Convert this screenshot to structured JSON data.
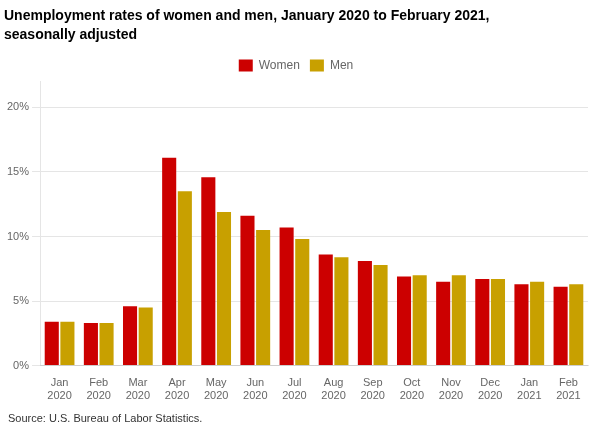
{
  "chart_data": {
    "type": "bar",
    "title": "Unemployment rates of women and men, January 2020 to February 2021,",
    "subtitle": "seasonally adjusted",
    "source": "Source: U.S. Bureau of Labor Statistics.",
    "categories": [
      "Jan 2020",
      "Feb 2020",
      "Mar 2020",
      "Apr 2020",
      "May 2020",
      "Jun 2020",
      "Jul 2020",
      "Aug 2020",
      "Sep 2020",
      "Oct 2020",
      "Nov 2020",
      "Dec 2020",
      "Jan 2021",
      "Feb 2021"
    ],
    "series": [
      {
        "name": "Women",
        "color": "#CC0000",
        "values": [
          3.4,
          3.3,
          4.6,
          16.1,
          14.6,
          11.6,
          10.7,
          8.6,
          8.1,
          6.9,
          6.5,
          6.7,
          6.3,
          6.1
        ]
      },
      {
        "name": "Men",
        "color": "#C8A000",
        "values": [
          3.4,
          3.3,
          4.5,
          13.5,
          11.9,
          10.5,
          9.8,
          8.4,
          7.8,
          7.0,
          7.0,
          6.7,
          6.5,
          6.3
        ]
      }
    ],
    "ylim": [
      0,
      22
    ],
    "yticks": [
      {
        "value": 0,
        "label": "0%"
      },
      {
        "value": 5,
        "label": "5%"
      },
      {
        "value": 10,
        "label": "10%"
      },
      {
        "value": 15,
        "label": "15%"
      },
      {
        "value": 20,
        "label": "20%"
      }
    ],
    "grid": true,
    "legend": "top"
  }
}
